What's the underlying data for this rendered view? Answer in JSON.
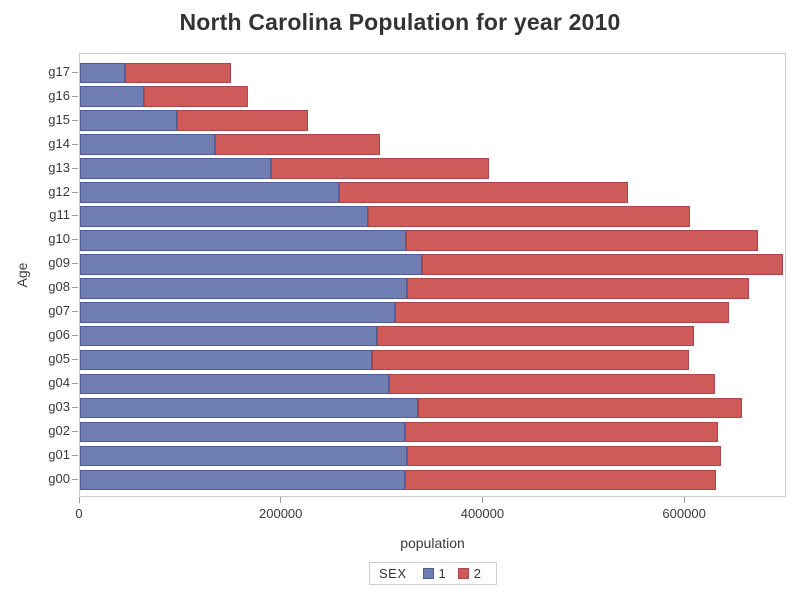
{
  "chart_data": {
    "type": "bar",
    "orientation": "horizontal",
    "stacked": true,
    "title": "North Carolina Population for year 2010",
    "xlabel": "population",
    "ylabel": "Age",
    "xlim": [
      0,
      701000
    ],
    "grid": false,
    "frame_color": "#cccccc",
    "tick_color": "#9a9a9a",
    "text_color": "#393939",
    "categories": [
      "g00",
      "g01",
      "g02",
      "g03",
      "g04",
      "g05",
      "g06",
      "g07",
      "g08",
      "g09",
      "g10",
      "g11",
      "g12",
      "g13",
      "g14",
      "g15",
      "g16",
      "g17"
    ],
    "category_order_on_screen": "g17 at top, g00 at bottom",
    "xticks": [
      {
        "value": 0,
        "label": "0"
      },
      {
        "value": 200000,
        "label": "200000"
      },
      {
        "value": 400000,
        "label": "400000"
      },
      {
        "value": 600000,
        "label": "600000"
      }
    ],
    "series": [
      {
        "name": "1",
        "color": "#6F7EB3",
        "border_color": "#4F5D94",
        "values": [
          322000,
          324000,
          322000,
          335000,
          306000,
          290000,
          294000,
          312000,
          324000,
          339000,
          323000,
          286000,
          257000,
          189000,
          134000,
          96000,
          63000,
          45000
        ]
      },
      {
        "name": "2",
        "color": "#CE5A5A",
        "border_color": "#A94848",
        "values": [
          309000,
          312000,
          311000,
          321000,
          324000,
          314000,
          315000,
          332000,
          339000,
          358000,
          349000,
          319000,
          286000,
          217000,
          163000,
          130000,
          104000,
          105000
        ]
      }
    ],
    "totals_by_category": [
      631000,
      636000,
      633000,
      656000,
      630000,
      604000,
      609000,
      644000,
      663000,
      697000,
      672000,
      605000,
      543000,
      406000,
      297000,
      226000,
      167000,
      150000
    ],
    "legend": {
      "title": "SEX",
      "position": "bottom-center",
      "entries": [
        {
          "label": "1",
          "color": "#6F7EB3",
          "border_color": "#4F5D94"
        },
        {
          "label": "2",
          "color": "#CE5A5A",
          "border_color": "#A94848"
        }
      ]
    }
  }
}
